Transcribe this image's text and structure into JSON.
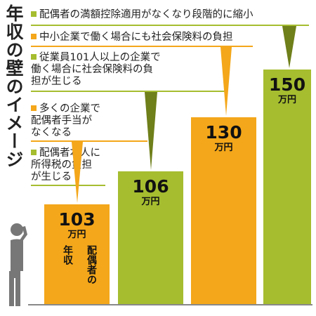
{
  "title": "年収の壁のイメージ",
  "colors": {
    "green": "#a5bd2f",
    "orange": "#f4a71a",
    "olive": "#6f7f1a",
    "figure": "#777777"
  },
  "legend": [
    {
      "text": "配偶者の満額控除適用がなくなり段階的に縮小",
      "color": "#a5bd2f"
    },
    {
      "text": "中小企業で働く場合にも社会保険料の負担",
      "color": "#f4a71a"
    },
    {
      "text": "従業員101人以上の企業で\n働く場合に社会保険料の負\n担が生じる",
      "color": "#a5bd2f"
    },
    {
      "text": "多くの企業で\n配偶者手当が\nなくなる",
      "color": "#f4a71a"
    },
    {
      "text": "配偶者本人に\n所得税の負担\nが生じる",
      "color": "#a5bd2f"
    }
  ],
  "chart_data": {
    "type": "bar",
    "title": "年収の壁のイメージ",
    "unit": "万円",
    "categories": [
      "103万円",
      "106万円",
      "130万円",
      "150万円"
    ],
    "values": [
      103,
      106,
      130,
      150
    ],
    "labels": [
      "103",
      "106",
      "130",
      "150"
    ],
    "colors": [
      "#f4a71a",
      "#a5bd2f",
      "#f4a71a",
      "#a5bd2f"
    ],
    "annotations": [
      {
        "category": "103万円",
        "text": "年収"
      },
      {
        "category": "103万円",
        "text": "配偶者の"
      }
    ],
    "grid": false,
    "legend_position": "top-left"
  }
}
